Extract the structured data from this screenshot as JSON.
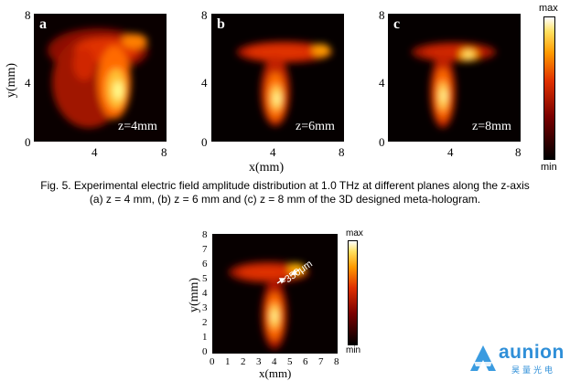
{
  "figure_top": {
    "x_axis_label": "x(mm)",
    "y_axis_label": "y(mm)",
    "y_ticks": [
      "8",
      "4",
      "0"
    ],
    "x_ticks": [
      "4",
      "8"
    ],
    "panels": [
      {
        "letter": "a",
        "z_label": "z=4mm"
      },
      {
        "letter": "b",
        "z_label": "z=6mm"
      },
      {
        "letter": "c",
        "z_label": "z=8mm"
      }
    ],
    "colorbar": {
      "max_label": "max",
      "min_label": "min"
    }
  },
  "caption": {
    "line1": "Fig. 5. Experimental electric field amplitude distribution at 1.0 THz at different planes along the z-axis",
    "line2": "(a) z = 4 mm, (b) z = 6 mm and (c) z = 8 mm of the 3D designed meta-hologram."
  },
  "figure_bottom": {
    "x_axis_label": "x(mm)",
    "y_axis_label": "y(mm)",
    "x_ticks": [
      "0",
      "1",
      "2",
      "3",
      "4",
      "5",
      "6",
      "7",
      "8"
    ],
    "y_ticks": [
      "8",
      "7",
      "6",
      "5",
      "4",
      "3",
      "2",
      "1",
      "0"
    ],
    "annotation": "~350μm",
    "colorbar": {
      "max_label": "max",
      "min_label": "min"
    }
  },
  "logo": {
    "name": "aunion",
    "subtitle": "昊量光电",
    "color": "#2f8fd8"
  },
  "colors": {
    "colormap": [
      "#000000",
      "#5a0000",
      "#b01800",
      "#ff5a00",
      "#ffb000",
      "#fff080",
      "#ffffff"
    ]
  }
}
